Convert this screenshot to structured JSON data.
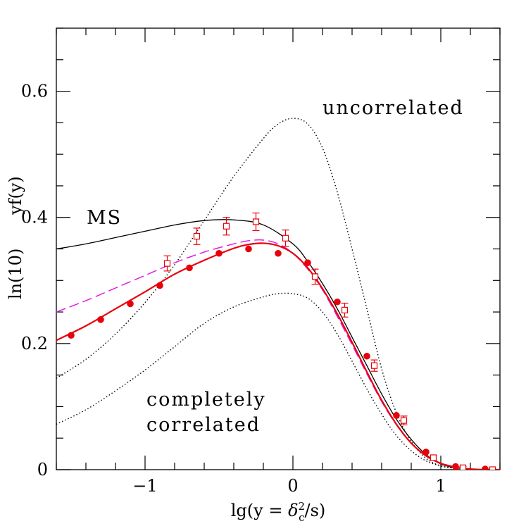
{
  "chart_data": {
    "type": "line",
    "xlabel_parts": {
      "pre": "lg(y = ",
      "delta": "δ",
      "sup": "2",
      "sub": "c",
      "post": "/s)"
    },
    "ylabel_left": "ln(10)",
    "ylabel_right": "yf(y)",
    "xlim": [
      -1.6,
      1.4
    ],
    "ylim": [
      0,
      0.7
    ],
    "xticks": [
      {
        "value": -1,
        "label": "−1"
      },
      {
        "value": 0,
        "label": "0"
      },
      {
        "value": 1,
        "label": "1"
      }
    ],
    "yticks": [
      {
        "value": 0,
        "label": "0"
      },
      {
        "value": 0.2,
        "label": "0.2"
      },
      {
        "value": 0.4,
        "label": "0.4"
      },
      {
        "value": 0.6,
        "label": "0.6"
      }
    ],
    "annotations": {
      "uncorrelated": "uncorrelated",
      "ms": "MS",
      "completely": "completely",
      "correlated": "correlated"
    },
    "series": [
      {
        "name": "MS",
        "color": "#000000",
        "style": "solid",
        "x": [
          -1.6,
          -1.4,
          -1.2,
          -1.0,
          -0.8,
          -0.6,
          -0.4,
          -0.2,
          0.0,
          0.1,
          0.2,
          0.3,
          0.4,
          0.5,
          0.6,
          0.7,
          0.8,
          0.9,
          1.0,
          1.1,
          1.2,
          1.3,
          1.4
        ],
        "y": [
          0.35,
          0.358,
          0.368,
          0.378,
          0.388,
          0.395,
          0.396,
          0.388,
          0.358,
          0.33,
          0.295,
          0.255,
          0.21,
          0.165,
          0.12,
          0.08,
          0.048,
          0.024,
          0.009,
          0.003,
          0.001,
          0.0,
          0.0
        ]
      },
      {
        "name": "uncorrelated",
        "color": "#000000",
        "style": "dotted",
        "x": [
          -1.6,
          -1.4,
          -1.2,
          -1.0,
          -0.8,
          -0.6,
          -0.4,
          -0.2,
          -0.1,
          0.0,
          0.1,
          0.2,
          0.3,
          0.4,
          0.5,
          0.6,
          0.7,
          0.8,
          0.9,
          1.0,
          1.1,
          1.2,
          1.3,
          1.4
        ],
        "y": [
          0.145,
          0.175,
          0.215,
          0.265,
          0.325,
          0.395,
          0.465,
          0.525,
          0.548,
          0.557,
          0.548,
          0.51,
          0.44,
          0.35,
          0.255,
          0.16,
          0.09,
          0.045,
          0.018,
          0.006,
          0.002,
          0.0005,
          0.0,
          0.0
        ]
      },
      {
        "name": "completely correlated",
        "color": "#000000",
        "style": "dotted",
        "x": [
          -1.6,
          -1.4,
          -1.2,
          -1.0,
          -0.8,
          -0.6,
          -0.4,
          -0.2,
          -0.1,
          0.0,
          0.1,
          0.2,
          0.3,
          0.4,
          0.5,
          0.6,
          0.7,
          0.8,
          0.9,
          1.0,
          1.1,
          1.2,
          1.3,
          1.4
        ],
        "y": [
          0.072,
          0.095,
          0.125,
          0.158,
          0.195,
          0.232,
          0.258,
          0.274,
          0.279,
          0.279,
          0.272,
          0.25,
          0.215,
          0.172,
          0.128,
          0.088,
          0.054,
          0.03,
          0.014,
          0.006,
          0.002,
          0.0005,
          0.0,
          0.0
        ]
      },
      {
        "name": "magenta dashed",
        "color": "#e020e0",
        "style": "dashed",
        "x": [
          -1.6,
          -1.4,
          -1.2,
          -1.0,
          -0.8,
          -0.6,
          -0.4,
          -0.3,
          -0.2,
          -0.1,
          0.0,
          0.1,
          0.2,
          0.3,
          0.4,
          0.5,
          0.6,
          0.7,
          0.8,
          0.9,
          1.0,
          1.1,
          1.2,
          1.3,
          1.4
        ],
        "y": [
          0.25,
          0.268,
          0.288,
          0.308,
          0.328,
          0.345,
          0.358,
          0.363,
          0.364,
          0.358,
          0.343,
          0.318,
          0.285,
          0.243,
          0.198,
          0.152,
          0.108,
          0.071,
          0.042,
          0.022,
          0.01,
          0.004,
          0.001,
          0.0,
          0.0
        ]
      },
      {
        "name": "red solid",
        "color": "#e8000b",
        "style": "solid",
        "x": [
          -1.6,
          -1.4,
          -1.2,
          -1.0,
          -0.8,
          -0.6,
          -0.4,
          -0.3,
          -0.2,
          -0.1,
          0.0,
          0.1,
          0.2,
          0.3,
          0.4,
          0.5,
          0.6,
          0.7,
          0.8,
          0.9,
          1.0,
          1.1,
          1.2,
          1.3,
          1.4
        ],
        "y": [
          0.205,
          0.228,
          0.255,
          0.282,
          0.31,
          0.332,
          0.351,
          0.357,
          0.359,
          0.355,
          0.343,
          0.32,
          0.287,
          0.247,
          0.202,
          0.155,
          0.11,
          0.072,
          0.042,
          0.022,
          0.01,
          0.004,
          0.001,
          0.0,
          0.0
        ]
      }
    ],
    "points_filled": {
      "color": "#e8000b",
      "x": [
        -1.5,
        -1.3,
        -1.1,
        -0.9,
        -0.7,
        -0.5,
        -0.3,
        -0.1,
        0.1,
        0.3,
        0.5,
        0.7,
        0.9,
        1.1,
        1.3
      ],
      "y": [
        0.213,
        0.238,
        0.263,
        0.292,
        0.32,
        0.343,
        0.35,
        0.343,
        0.328,
        0.266,
        0.18,
        0.086,
        0.028,
        0.005,
        0.001
      ]
    },
    "points_open": {
      "color": "#e8000b",
      "x": [
        -0.85,
        -0.65,
        -0.45,
        -0.25,
        -0.05,
        0.15,
        0.35,
        0.55,
        0.75,
        0.95,
        1.15,
        1.35
      ],
      "y": [
        0.327,
        0.37,
        0.386,
        0.393,
        0.367,
        0.306,
        0.253,
        0.165,
        0.078,
        0.019,
        0.003,
        0.0
      ],
      "err": [
        0.012,
        0.013,
        0.014,
        0.014,
        0.013,
        0.012,
        0.011,
        0.009,
        0.007,
        0.004,
        0.002,
        0.001
      ]
    }
  }
}
